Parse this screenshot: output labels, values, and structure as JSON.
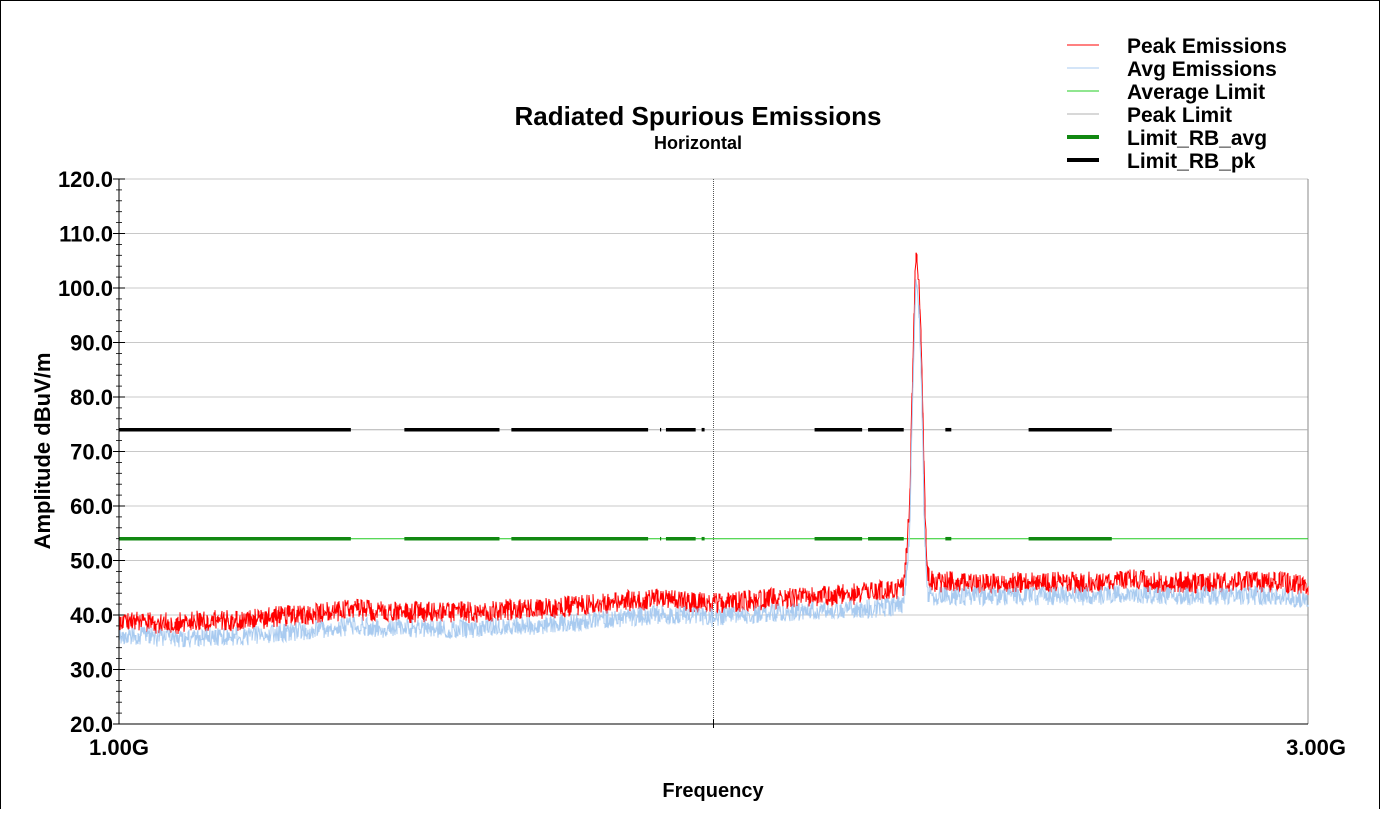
{
  "chart_data": {
    "type": "line",
    "title": "Radiated Spurious Emissions",
    "subtitle": "Horizontal",
    "xlabel": "Frequency",
    "ylabel": "Amplitude dBuV/m",
    "xlim": [
      1.0,
      3.0
    ],
    "x_unit": "GHz",
    "x_ticks": [
      "1.00G",
      "3.00G"
    ],
    "ylim": [
      20,
      120
    ],
    "y_ticks": [
      "20.0",
      "30.0",
      "40.0",
      "50.0",
      "60.0",
      "70.0",
      "80.0",
      "90.0",
      "100.0",
      "110.0",
      "120.0"
    ],
    "grid": true,
    "legend_position": "top-right",
    "series": [
      {
        "name": "Peak Emissions",
        "color": "#ff0000",
        "x": [
          1.0,
          1.05,
          1.1,
          1.15,
          1.2,
          1.25,
          1.3,
          1.35,
          1.4,
          1.45,
          1.5,
          1.55,
          1.6,
          1.65,
          1.7,
          1.75,
          1.8,
          1.85,
          1.9,
          1.95,
          2.0,
          2.05,
          2.1,
          2.15,
          2.2,
          2.25,
          2.3,
          2.32,
          2.33,
          2.335,
          2.34,
          2.345,
          2.35,
          2.355,
          2.36,
          2.37,
          2.4,
          2.45,
          2.5,
          2.55,
          2.6,
          2.65,
          2.7,
          2.75,
          2.8,
          2.85,
          2.9,
          2.95,
          3.0
        ],
        "y": [
          39,
          38.5,
          38.5,
          39,
          39,
          39.5,
          40,
          40.5,
          41,
          40.5,
          40.5,
          40.5,
          40.5,
          41,
          41,
          41.5,
          42,
          42.5,
          43,
          42.5,
          42,
          42.5,
          43,
          43,
          43.5,
          44,
          44.5,
          45,
          60,
          85,
          106,
          103,
          88,
          62,
          47,
          46,
          46,
          45.5,
          46,
          46,
          46,
          46,
          46.5,
          46,
          46,
          46,
          46,
          46,
          45.5
        ]
      },
      {
        "name": "Avg Emissions",
        "color": "#a9cbf0",
        "x": [
          1.0,
          1.05,
          1.1,
          1.15,
          1.2,
          1.25,
          1.3,
          1.35,
          1.4,
          1.45,
          1.5,
          1.55,
          1.6,
          1.65,
          1.7,
          1.75,
          1.8,
          1.85,
          1.9,
          1.95,
          2.0,
          2.05,
          2.1,
          2.15,
          2.2,
          2.25,
          2.3,
          2.32,
          2.33,
          2.335,
          2.34,
          2.345,
          2.35,
          2.355,
          2.36,
          2.37,
          2.4,
          2.45,
          2.5,
          2.55,
          2.6,
          2.65,
          2.7,
          2.75,
          2.8,
          2.85,
          2.9,
          2.95,
          3.0
        ],
        "y": [
          36.5,
          36,
          35.5,
          36,
          36,
          36.5,
          37,
          37.5,
          38,
          37.5,
          37.5,
          37.5,
          37.5,
          38,
          38,
          38.5,
          39,
          39.5,
          40,
          40,
          39.5,
          40,
          40.5,
          40.5,
          41,
          41,
          41.5,
          42,
          55,
          80,
          101,
          98,
          82,
          55,
          44,
          43.5,
          43.5,
          43.5,
          43.5,
          43.5,
          43.5,
          43.5,
          44,
          43.5,
          43.5,
          43.5,
          43.5,
          43.5,
          43
        ]
      },
      {
        "name": "Average Limit",
        "color": "#22cc22",
        "x": [
          1.0,
          3.0
        ],
        "y": [
          54,
          54
        ]
      },
      {
        "name": "Peak Limit",
        "color": "#b0b0b0",
        "x": [
          1.0,
          3.0
        ],
        "y": [
          74,
          74
        ]
      },
      {
        "name": "Limit_RB_avg",
        "color": "#118811",
        "segments": [
          [
            1.0,
            1.39
          ],
          [
            1.48,
            1.64
          ],
          [
            1.66,
            1.89
          ],
          [
            1.91,
            1.912
          ],
          [
            1.92,
            1.97
          ],
          [
            1.98,
            1.985
          ],
          [
            2.17,
            2.25
          ],
          [
            2.26,
            2.32
          ],
          [
            2.39,
            2.4
          ],
          [
            2.53,
            2.67
          ]
        ],
        "y": 54
      },
      {
        "name": "Limit_RB_pk",
        "color": "#000000",
        "segments": [
          [
            1.0,
            1.39
          ],
          [
            1.48,
            1.64
          ],
          [
            1.66,
            1.89
          ],
          [
            1.91,
            1.912
          ],
          [
            1.92,
            1.97
          ],
          [
            1.98,
            1.985
          ],
          [
            2.17,
            2.25
          ],
          [
            2.26,
            2.32
          ],
          [
            2.39,
            2.4
          ],
          [
            2.53,
            2.67
          ]
        ],
        "y": 74
      }
    ]
  }
}
